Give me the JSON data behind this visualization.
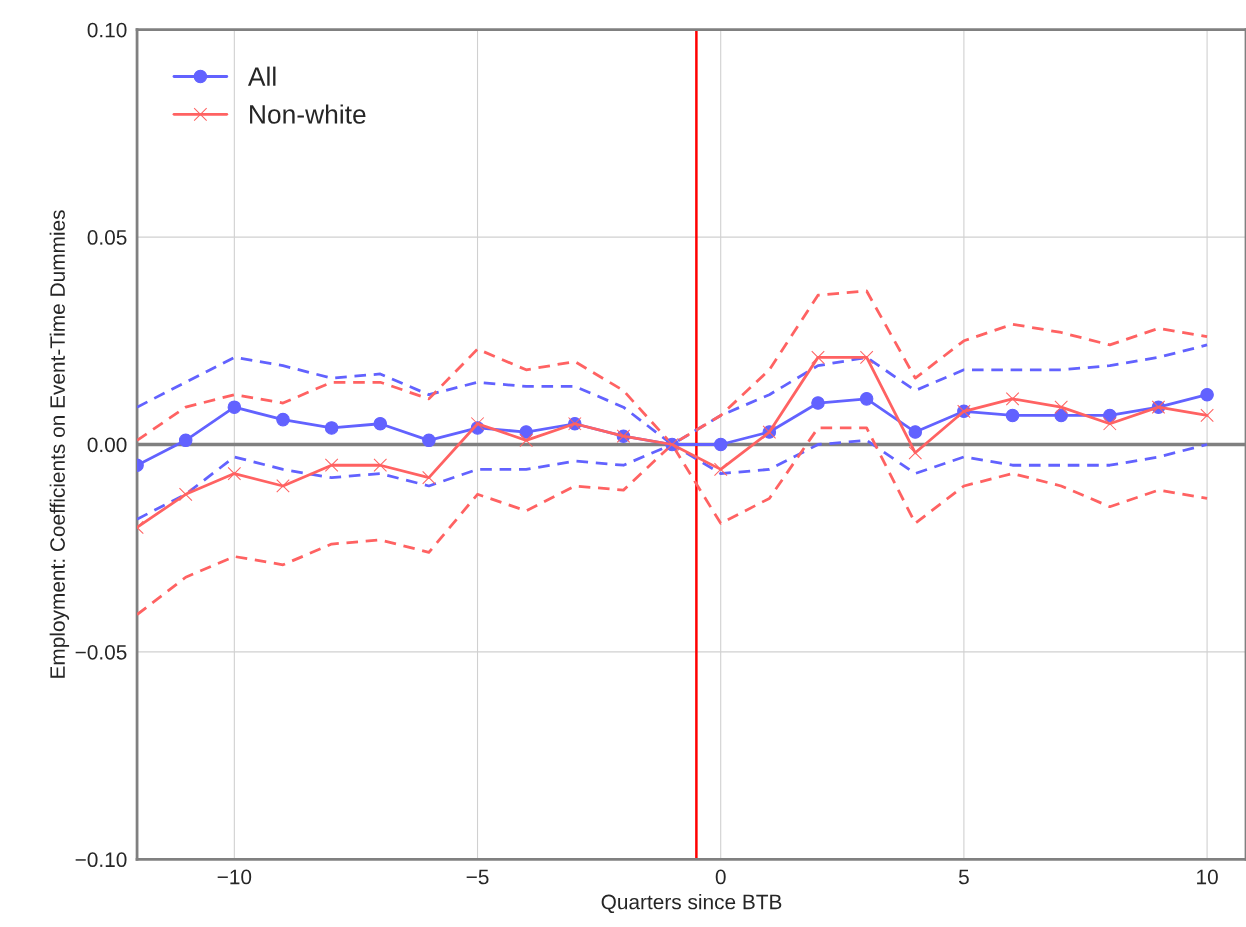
{
  "chart_data": {
    "type": "line",
    "xlabel": "Quarters since BTB",
    "ylabel": "Employment: Coefficients on Event-Time Dummies",
    "x": [
      -12,
      -11,
      -10,
      -9,
      -8,
      -7,
      -6,
      -5,
      -4,
      -3,
      -2,
      -1,
      0,
      1,
      2,
      3,
      4,
      5,
      6,
      7,
      8,
      9,
      10
    ],
    "series": [
      {
        "name": "All",
        "color": "#6262ff",
        "marker": "circle",
        "line_style": "solid",
        "values": [
          -0.005,
          0.001,
          0.009,
          0.006,
          0.004,
          0.005,
          0.001,
          0.004,
          0.003,
          0.005,
          0.002,
          0.0,
          0.0,
          0.003,
          0.01,
          0.011,
          0.003,
          0.008,
          0.007,
          0.007,
          0.007,
          0.009,
          0.012
        ]
      },
      {
        "name": "Non-white",
        "color": "#ff6262",
        "marker": "cross",
        "line_style": "solid",
        "values": [
          -0.02,
          -0.012,
          -0.007,
          -0.01,
          -0.005,
          -0.005,
          -0.008,
          0.005,
          0.001,
          0.005,
          0.002,
          0.0,
          -0.006,
          0.003,
          0.021,
          0.021,
          -0.002,
          0.008,
          0.011,
          0.009,
          0.005,
          0.009,
          0.007
        ]
      },
      {
        "color": "#6262ff",
        "line_style": "dashed",
        "values": [
          -0.018,
          -0.012,
          -0.003,
          -0.006,
          -0.008,
          -0.007,
          -0.01,
          -0.006,
          -0.006,
          -0.004,
          -0.005,
          0.0,
          -0.007,
          -0.006,
          0.0,
          0.001,
          -0.007,
          -0.003,
          -0.005,
          -0.005,
          -0.005,
          -0.003,
          0.0
        ]
      },
      {
        "color": "#6262ff",
        "line_style": "dashed",
        "values": [
          0.009,
          0.015,
          0.021,
          0.019,
          0.016,
          0.017,
          0.012,
          0.015,
          0.014,
          0.014,
          0.009,
          0.0,
          0.007,
          0.012,
          0.019,
          0.021,
          0.013,
          0.018,
          0.018,
          0.018,
          0.019,
          0.021,
          0.024
        ]
      },
      {
        "color": "#ff6262",
        "line_style": "dashed",
        "values": [
          -0.041,
          -0.032,
          -0.027,
          -0.029,
          -0.024,
          -0.023,
          -0.026,
          -0.012,
          -0.016,
          -0.01,
          -0.011,
          0.0,
          -0.019,
          -0.013,
          0.004,
          0.004,
          -0.019,
          -0.01,
          -0.007,
          -0.01,
          -0.015,
          -0.011,
          -0.013
        ]
      },
      {
        "color": "#ff6262",
        "line_style": "dashed",
        "values": [
          0.001,
          0.009,
          0.012,
          0.01,
          0.015,
          0.015,
          0.011,
          0.023,
          0.018,
          0.02,
          0.013,
          0.0,
          0.007,
          0.018,
          0.036,
          0.037,
          0.016,
          0.025,
          0.029,
          0.027,
          0.024,
          0.028,
          0.026
        ]
      }
    ],
    "xlim": [
      -12,
      10.8
    ],
    "xticks": [
      {
        "value": -10,
        "label": "−10"
      },
      {
        "value": -5,
        "label": "−5"
      },
      0,
      5,
      10
    ],
    "ylim": [
      -0.1,
      0.1
    ],
    "yticks": [
      {
        "value": -0.1,
        "label": "−0.10"
      },
      {
        "value": -0.05,
        "label": "−0.05"
      },
      {
        "value": 0,
        "label": "0.00"
      },
      {
        "value": 0.05,
        "label": "0.05"
      },
      {
        "value": 0.1,
        "label": "0.10"
      }
    ],
    "ref_lines": [
      {
        "axis": "y",
        "value": 0,
        "color": "#808080"
      },
      {
        "axis": "x",
        "value": -0.5,
        "color": "#ff0000"
      }
    ],
    "grid": true,
    "legend": "top left"
  }
}
